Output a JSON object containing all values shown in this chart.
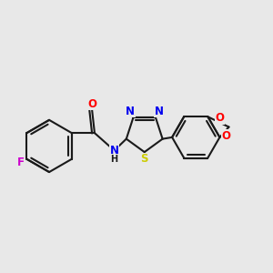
{
  "bg_color": "#e8e8e8",
  "bond_color": "#1a1a1a",
  "bond_width": 1.5,
  "dbo": 0.055,
  "atom_colors": {
    "F": "#cc00cc",
    "O": "#ff0000",
    "N": "#0000ee",
    "S": "#cccc00",
    "C": "#1a1a1a",
    "H": "#1a1a1a"
  },
  "font_size": 8.5,
  "title": ""
}
